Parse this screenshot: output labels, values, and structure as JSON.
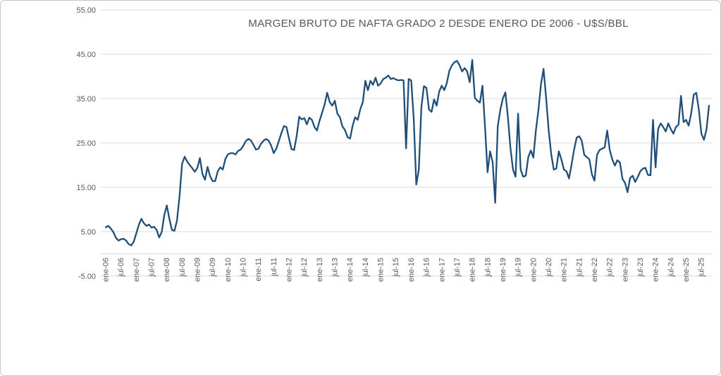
{
  "window": {
    "background_color": "#FFFFFF",
    "border_color": "#C6C6C6"
  },
  "chart_data": {
    "type": "line",
    "title": "MARGEN BRUTO DE NAFTA GRADO 2 DESDE ENERO DE 2006 - U$S/BBL",
    "title_color": "#595959",
    "line_color": "#1F4E79",
    "gridline_color": "#D9D9D9",
    "axis_line_color": "#D9D9D9",
    "tick_label_color": "#595959",
    "grid": true,
    "legend": "none",
    "ylim": [
      -5,
      55
    ],
    "y_ticks": [
      {
        "label": "55.00",
        "value": 55
      },
      {
        "label": "45.00",
        "value": 45
      },
      {
        "label": "35.00",
        "value": 35
      },
      {
        "label": "25.00",
        "value": 25
      },
      {
        "label": "15.00",
        "value": 15
      },
      {
        "label": "5.00",
        "value": 5
      },
      {
        "label": "-5.00",
        "value": -5
      }
    ],
    "x_tick_interval_months": 6,
    "x_tick_labels": [
      "ene-06",
      "jul-06",
      "ene-07",
      "jul-07",
      "ene-08",
      "jul-08",
      "ene-09",
      "jul-09",
      "ene-10",
      "jul-10",
      "ene-11",
      "jul-11",
      "ene-12",
      "jul-12",
      "ene-13",
      "jul-13",
      "ene-14",
      "jul-14",
      "ene-15",
      "jul-15",
      "ene-16",
      "jul-16",
      "ene-17",
      "jul-17",
      "ene-18",
      "jul-18",
      "ene-19",
      "jul-19",
      "ene-20",
      "jul-20",
      "ene-21",
      "jul-21",
      "ene-22",
      "jul-22",
      "ene-23",
      "jul-23",
      "ene-24",
      "jul-24",
      "ene-25",
      "jul-25"
    ],
    "series_name": "Margen bruto de nafta grado 2 (U$S/BBL)",
    "start_month": "ene-06",
    "end_month": "oct-25",
    "values": [
      6.0,
      6.3,
      5.7,
      4.9,
      3.6,
      3.0,
      3.3,
      3.4,
      3.0,
      2.2,
      1.9,
      2.7,
      4.6,
      6.5,
      7.9,
      6.9,
      6.3,
      6.6,
      5.9,
      6.1,
      5.4,
      3.7,
      4.9,
      8.7,
      10.9,
      7.9,
      5.4,
      5.2,
      7.5,
      13.0,
      20.3,
      21.9,
      20.8,
      20.0,
      19.3,
      18.5,
      19.4,
      21.6,
      18.0,
      16.7,
      19.6,
      17.5,
      16.4,
      16.4,
      18.6,
      19.5,
      19.0,
      21.4,
      22.4,
      22.7,
      22.7,
      22.4,
      23.2,
      23.5,
      24.3,
      25.4,
      25.9,
      25.6,
      24.6,
      23.5,
      23.7,
      24.8,
      25.5,
      25.9,
      25.5,
      24.4,
      22.7,
      23.7,
      25.4,
      27.2,
      28.8,
      28.6,
      26.0,
      23.6,
      23.4,
      26.5,
      30.9,
      30.3,
      30.6,
      29.2,
      30.7,
      30.2,
      28.6,
      27.8,
      30.0,
      31.8,
      33.7,
      36.3,
      34.2,
      33.4,
      34.5,
      31.6,
      30.8,
      28.7,
      27.9,
      26.3,
      26.0,
      28.9,
      30.8,
      30.2,
      32.6,
      34.2,
      39.0,
      36.9,
      39.0,
      38.1,
      39.7,
      37.9,
      38.4,
      39.4,
      39.7,
      40.2,
      39.4,
      39.6,
      39.3,
      39.1,
      39.2,
      39.1,
      23.8,
      39.4,
      39.1,
      30.5,
      15.6,
      19.0,
      33.0,
      37.8,
      37.4,
      32.5,
      32.0,
      34.8,
      33.4,
      36.6,
      37.9,
      36.9,
      38.5,
      41.3,
      42.5,
      43.2,
      43.5,
      42.5,
      41.1,
      41.9,
      41.1,
      38.7,
      43.7,
      35.2,
      34.5,
      34.1,
      37.9,
      28.7,
      18.4,
      23.1,
      20.7,
      11.5,
      28.7,
      32.4,
      35.0,
      36.4,
      30.8,
      23.8,
      19.0,
      17.4,
      31.6,
      19.0,
      17.4,
      17.6,
      21.8,
      23.3,
      21.7,
      27.9,
      32.5,
      38.3,
      41.7,
      35.2,
      27.9,
      22.5,
      19.0,
      19.2,
      23.1,
      21.3,
      19.0,
      18.6,
      17.0,
      20.1,
      23.5,
      26.2,
      26.5,
      25.5,
      22.3,
      21.8,
      21.3,
      17.9,
      16.5,
      22.3,
      23.4,
      23.7,
      24.0,
      27.8,
      23.4,
      21.3,
      19.9,
      21.1,
      20.6,
      16.9,
      16.0,
      13.9,
      17.1,
      17.6,
      16.2,
      17.3,
      18.6,
      19.2,
      19.4,
      17.8,
      17.7,
      30.2,
      19.5,
      28.1,
      29.4,
      28.6,
      27.6,
      29.4,
      28.1,
      27.1,
      28.6,
      29.1,
      35.6,
      29.7,
      30.2,
      28.9,
      31.7,
      35.9,
      36.3,
      32.5,
      27.1,
      25.7,
      28.0,
      33.4
    ]
  }
}
